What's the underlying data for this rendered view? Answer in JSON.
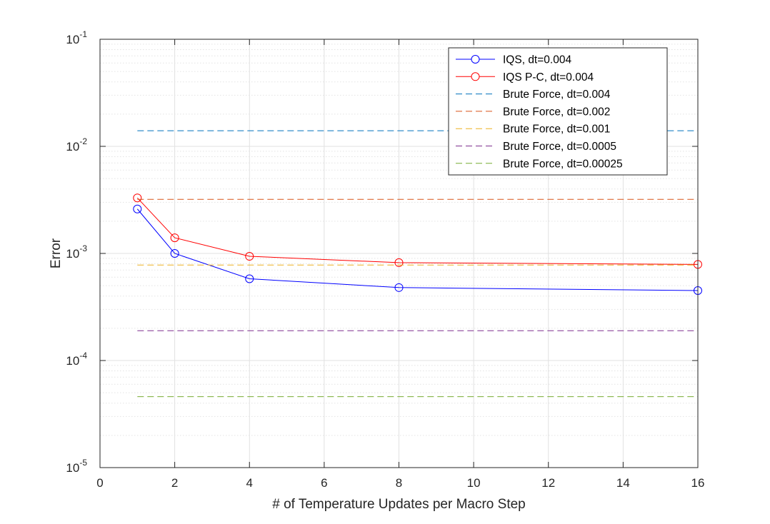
{
  "chart_data": {
    "type": "line",
    "title": "",
    "xlabel": "# of Temperature Updates per Macro Step",
    "ylabel": "Error",
    "xlim": [
      0,
      16
    ],
    "ylim": [
      1e-05,
      0.1
    ],
    "yscale": "log",
    "grid": true,
    "minor_grid_y": true,
    "legend_position": "top-right",
    "x_ticks": [
      0,
      2,
      4,
      6,
      8,
      10,
      12,
      14,
      16
    ],
    "y_ticks": [
      {
        "base": "10",
        "exp": "-5",
        "value": 1e-05
      },
      {
        "base": "10",
        "exp": "-4",
        "value": 0.0001
      },
      {
        "base": "10",
        "exp": "-3",
        "value": 0.001
      },
      {
        "base": "10",
        "exp": "-2",
        "value": 0.01
      },
      {
        "base": "10",
        "exp": "-1",
        "value": 0.1
      }
    ],
    "series": [
      {
        "name": "IQS, dt=0.004",
        "color": "#0000ff",
        "style": "solid",
        "marker": "circle",
        "x": [
          1,
          2,
          4,
          8,
          16
        ],
        "y": [
          0.0026,
          0.001,
          0.00058,
          0.00048,
          0.00045
        ]
      },
      {
        "name": "IQS P-C, dt=0.004",
        "color": "#ff0000",
        "style": "solid",
        "marker": "circle",
        "x": [
          1,
          2,
          4,
          8,
          16
        ],
        "y": [
          0.0033,
          0.0014,
          0.00094,
          0.00082,
          0.00079
        ]
      },
      {
        "name": "Brute Force, dt=0.004",
        "color": "#0072bd",
        "style": "dashed",
        "marker": "none",
        "x": [
          1,
          16
        ],
        "y": [
          0.014,
          0.014
        ]
      },
      {
        "name": "Brute Force, dt=0.002",
        "color": "#d95319",
        "style": "dashed",
        "marker": "none",
        "x": [
          1,
          16
        ],
        "y": [
          0.0032,
          0.0032
        ]
      },
      {
        "name": "Brute Force, dt=0.001",
        "color": "#edb120",
        "style": "dashed",
        "marker": "none",
        "x": [
          1,
          16
        ],
        "y": [
          0.00078,
          0.00078
        ]
      },
      {
        "name": "Brute Force, dt=0.0005",
        "color": "#7e2f8e",
        "style": "dashed",
        "marker": "none",
        "x": [
          1,
          16
        ],
        "y": [
          0.00019,
          0.00019
        ]
      },
      {
        "name": "Brute Force, dt=0.00025",
        "color": "#77ac30",
        "style": "dashed",
        "marker": "none",
        "x": [
          1,
          16
        ],
        "y": [
          4.6e-05,
          4.6e-05
        ]
      }
    ]
  }
}
